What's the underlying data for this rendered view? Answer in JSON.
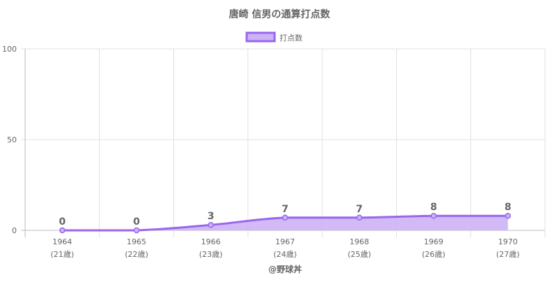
{
  "chart_data": {
    "type": "area",
    "title": "唐崎 信男の通算打点数",
    "legend": {
      "position": "top",
      "label": "打点数"
    },
    "categories": [
      "1964",
      "1965",
      "1966",
      "1967",
      "1968",
      "1969",
      "1970"
    ],
    "sublabels": [
      "(21歳)",
      "(22歳)",
      "(23歳)",
      "(24歳)",
      "(25歳)",
      "(26歳)",
      "(27歳)"
    ],
    "series": [
      {
        "name": "打点数",
        "values": [
          0,
          0,
          3,
          7,
          7,
          8,
          8
        ]
      }
    ],
    "ylim": [
      0,
      100
    ],
    "yticks": [
      0,
      50,
      100
    ],
    "grid": true,
    "data_labels": true,
    "footer": "@野球丼",
    "colors": {
      "line": "#9966ee",
      "fill": "#ccb3f5",
      "grid": "#e0e0e0",
      "axis": "#bbbbbb",
      "text": "#666666"
    }
  }
}
